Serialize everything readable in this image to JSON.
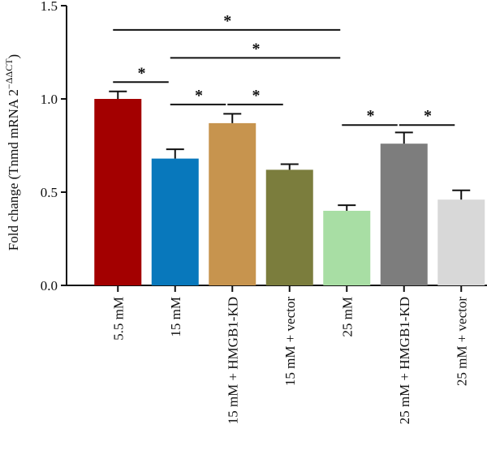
{
  "chart_data": {
    "type": "bar",
    "categories": [
      "5.5 mM",
      "15 mM",
      "15 mM + HMGB1-KD",
      "15 mM + vector",
      "25 mM",
      "25 mM + HMGB1-KD",
      "25 mM + vector"
    ],
    "values": [
      1.0,
      0.68,
      0.87,
      0.62,
      0.4,
      0.76,
      0.46
    ],
    "errors": [
      0.04,
      0.05,
      0.05,
      0.03,
      0.03,
      0.06,
      0.05
    ],
    "colors": [
      "#a30000",
      "#0878bc",
      "#c7944e",
      "#7b7d3d",
      "#a8dea4",
      "#7d7d7d",
      "#d8d8d8"
    ],
    "ylabel_main": "Fold change (Tnmd mRNA 2",
    "ylabel_sup": "−ΔΔCT",
    "ylabel_end": ")",
    "ylim": [
      0,
      1.5
    ],
    "yticks": [
      0.0,
      0.5,
      1.0,
      1.5
    ],
    "ytick_labels": [
      "0.0",
      "0.5",
      "1.0",
      "1.5"
    ],
    "grid": false,
    "significance": [
      {
        "from": 0,
        "to": 1,
        "y": 1.09,
        "label": "*"
      },
      {
        "from": 2,
        "to": 3,
        "y": 0.97,
        "label": "*"
      },
      {
        "from": 1,
        "to": 2,
        "y": 0.97,
        "label": "*"
      },
      {
        "from": 1,
        "to": 4,
        "y": 1.22,
        "label": "*"
      },
      {
        "from": 0,
        "to": 4,
        "y": 1.37,
        "label": "*"
      },
      {
        "from": 4,
        "to": 5,
        "y": 0.86,
        "label": "*"
      },
      {
        "from": 5,
        "to": 6,
        "y": 0.86,
        "label": "*"
      }
    ]
  }
}
